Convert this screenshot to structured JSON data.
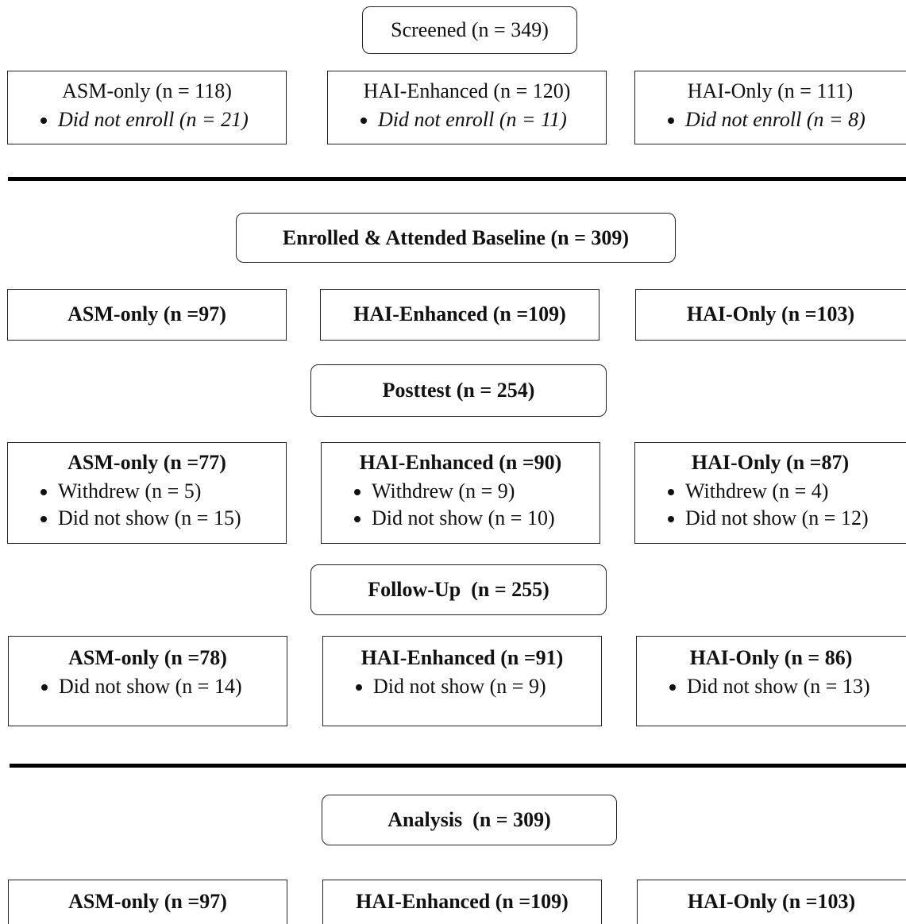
{
  "stages": [
    {
      "title": "Screened (n = 349)",
      "arms": [
        {
          "label": "ASM-only (n = 118)",
          "bullets": [
            "Did not enroll (n = 21)"
          ]
        },
        {
          "label": "HAI-Enhanced (n = 120)",
          "bullets": [
            "Did not enroll (n = 11)"
          ]
        },
        {
          "label": "HAI-Only (n = 111)",
          "bullets": [
            "Did not enroll (n = 8)"
          ]
        }
      ]
    },
    {
      "title": "Enrolled & Attended Baseline (n = 309)",
      "arms": [
        {
          "label": "ASM-only (n =97)"
        },
        {
          "label": "HAI-Enhanced (n =109)"
        },
        {
          "label": "HAI-Only (n =103)"
        }
      ]
    },
    {
      "title": "Posttest (n = 254)",
      "arms": [
        {
          "label": "ASM-only (n =77)",
          "bullets": [
            "Withdrew (n = 5)",
            "Did not show (n = 15)"
          ]
        },
        {
          "label": "HAI-Enhanced (n =90)",
          "bullets": [
            "Withdrew (n = 9)",
            "Did not show (n = 10)"
          ]
        },
        {
          "label": "HAI-Only (n =87)",
          "bullets": [
            "Withdrew (n = 4)",
            "Did not show (n = 12)"
          ]
        }
      ]
    },
    {
      "title": "Follow-Up  (n = 255)",
      "arms": [
        {
          "label": "ASM-only (n =78)",
          "bullets": [
            "Did not show (n = 14)"
          ]
        },
        {
          "label": "HAI-Enhanced (n =91)",
          "bullets": [
            "Did not show (n = 9)"
          ]
        },
        {
          "label": "HAI-Only (n = 86)",
          "bullets": [
            "Did not show (n = 13)"
          ]
        }
      ]
    },
    {
      "title": "Analysis  (n = 309)",
      "arms": [
        {
          "label": "ASM-only (n =97)"
        },
        {
          "label": "HAI-Enhanced (n =109)"
        },
        {
          "label": "HAI-Only (n =103)"
        }
      ]
    }
  ]
}
